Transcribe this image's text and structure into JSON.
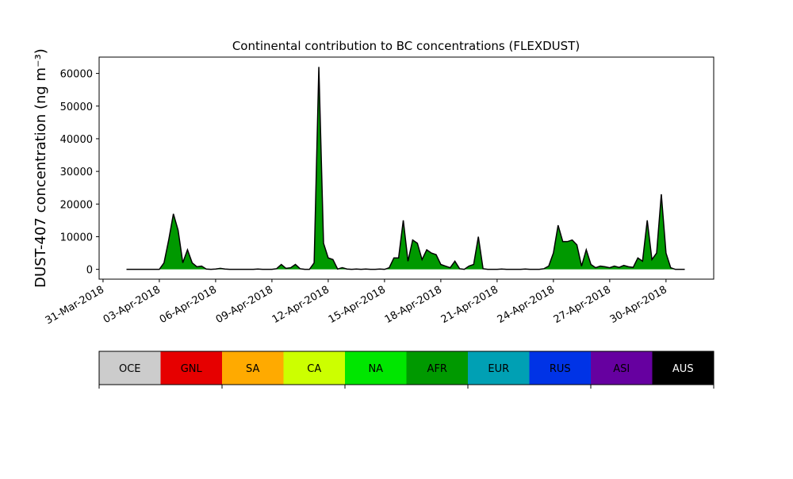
{
  "chart_data": {
    "type": "area",
    "title": "Continental contribution to BC concentrations (FLEXDUST)",
    "y_label": "DUST-407 concentration (ng m⁻³)",
    "xlim": [
      "2018-03-30T19:00",
      "2018-05-02T13:00"
    ],
    "xticks": [
      {
        "value": "2018-03-31T00:00",
        "label": "31-Mar-2018"
      },
      {
        "value": "2018-04-03T00:00",
        "label": "03-Apr-2018"
      },
      {
        "value": "2018-04-06T00:00",
        "label": "06-Apr-2018"
      },
      {
        "value": "2018-04-09T00:00",
        "label": "09-Apr-2018"
      },
      {
        "value": "2018-04-12T00:00",
        "label": "12-Apr-2018"
      },
      {
        "value": "2018-04-15T00:00",
        "label": "15-Apr-2018"
      },
      {
        "value": "2018-04-18T00:00",
        "label": "18-Apr-2018"
      },
      {
        "value": "2018-04-21T00:00",
        "label": "21-Apr-2018"
      },
      {
        "value": "2018-04-24T00:00",
        "label": "24-Apr-2018"
      },
      {
        "value": "2018-04-27T00:00",
        "label": "27-Apr-2018"
      },
      {
        "value": "2018-04-30T00:00",
        "label": "30-Apr-2018"
      }
    ],
    "ylim": [
      -3000,
      65000
    ],
    "yticks": [
      0,
      10000,
      20000,
      30000,
      40000,
      50000,
      60000
    ],
    "x": [
      "2018-04-01T06:00",
      "2018-04-01T12:00",
      "2018-04-01T18:00",
      "2018-04-02T00:00",
      "2018-04-02T06:00",
      "2018-04-02T12:00",
      "2018-04-02T18:00",
      "2018-04-03T00:00",
      "2018-04-03T06:00",
      "2018-04-03T12:00",
      "2018-04-03T18:00",
      "2018-04-04T00:00",
      "2018-04-04T06:00",
      "2018-04-04T12:00",
      "2018-04-04T18:00",
      "2018-04-05T00:00",
      "2018-04-05T06:00",
      "2018-04-05T12:00",
      "2018-04-05T18:00",
      "2018-04-06T00:00",
      "2018-04-06T06:00",
      "2018-04-06T12:00",
      "2018-04-06T18:00",
      "2018-04-07T00:00",
      "2018-04-07T06:00",
      "2018-04-07T12:00",
      "2018-04-07T18:00",
      "2018-04-08T00:00",
      "2018-04-08T06:00",
      "2018-04-08T12:00",
      "2018-04-08T18:00",
      "2018-04-09T00:00",
      "2018-04-09T06:00",
      "2018-04-09T12:00",
      "2018-04-09T18:00",
      "2018-04-10T00:00",
      "2018-04-10T06:00",
      "2018-04-10T12:00",
      "2018-04-10T18:00",
      "2018-04-11T00:00",
      "2018-04-11T06:00",
      "2018-04-11T12:00",
      "2018-04-11T18:00",
      "2018-04-12T00:00",
      "2018-04-12T06:00",
      "2018-04-12T12:00",
      "2018-04-12T18:00",
      "2018-04-13T00:00",
      "2018-04-13T06:00",
      "2018-04-13T12:00",
      "2018-04-13T18:00",
      "2018-04-14T00:00",
      "2018-04-14T06:00",
      "2018-04-14T12:00",
      "2018-04-14T18:00",
      "2018-04-15T00:00",
      "2018-04-15T06:00",
      "2018-04-15T12:00",
      "2018-04-15T18:00",
      "2018-04-16T00:00",
      "2018-04-16T06:00",
      "2018-04-16T12:00",
      "2018-04-16T18:00",
      "2018-04-17T00:00",
      "2018-04-17T06:00",
      "2018-04-17T12:00",
      "2018-04-17T18:00",
      "2018-04-18T00:00",
      "2018-04-18T06:00",
      "2018-04-18T12:00",
      "2018-04-18T18:00",
      "2018-04-19T00:00",
      "2018-04-19T06:00",
      "2018-04-19T12:00",
      "2018-04-19T18:00",
      "2018-04-20T00:00",
      "2018-04-20T06:00",
      "2018-04-20T12:00",
      "2018-04-20T18:00",
      "2018-04-21T00:00",
      "2018-04-21T06:00",
      "2018-04-21T12:00",
      "2018-04-21T18:00",
      "2018-04-22T00:00",
      "2018-04-22T06:00",
      "2018-04-22T12:00",
      "2018-04-22T18:00",
      "2018-04-23T00:00",
      "2018-04-23T06:00",
      "2018-04-23T12:00",
      "2018-04-23T18:00",
      "2018-04-24T00:00",
      "2018-04-24T06:00",
      "2018-04-24T12:00",
      "2018-04-24T18:00",
      "2018-04-25T00:00",
      "2018-04-25T06:00",
      "2018-04-25T12:00",
      "2018-04-25T18:00",
      "2018-04-26T00:00",
      "2018-04-26T06:00",
      "2018-04-26T12:00",
      "2018-04-26T18:00",
      "2018-04-27T00:00",
      "2018-04-27T06:00",
      "2018-04-27T12:00",
      "2018-04-27T18:00",
      "2018-04-28T00:00",
      "2018-04-28T06:00",
      "2018-04-28T12:00",
      "2018-04-28T18:00",
      "2018-04-29T00:00",
      "2018-04-29T06:00",
      "2018-04-29T12:00",
      "2018-04-29T18:00",
      "2018-04-30T00:00",
      "2018-04-30T06:00",
      "2018-04-30T12:00",
      "2018-04-30T18:00",
      "2018-05-01T00:00"
    ],
    "series": [
      {
        "name": "AFR",
        "color": "#009900",
        "values": [
          0,
          0,
          0,
          0,
          0,
          0,
          0,
          0,
          2000,
          9000,
          17000,
          12000,
          2000,
          6000,
          2000,
          800,
          1000,
          100,
          0,
          100,
          300,
          100,
          0,
          0,
          0,
          0,
          0,
          0,
          100,
          0,
          0,
          0,
          200,
          1500,
          300,
          500,
          1500,
          200,
          0,
          0,
          2000,
          62000,
          8000,
          3500,
          3000,
          100,
          500,
          100,
          0,
          100,
          0,
          100,
          0,
          0,
          100,
          0,
          500,
          3500,
          3500,
          15000,
          2500,
          9000,
          8000,
          3000,
          6000,
          5000,
          4500,
          1500,
          1000,
          500,
          2500,
          200,
          0,
          1000,
          1500,
          10000,
          200,
          0,
          0,
          0,
          100,
          0,
          0,
          0,
          0,
          100,
          0,
          0,
          0,
          200,
          1000,
          5000,
          13500,
          8500,
          8500,
          9000,
          7500,
          1000,
          6000,
          1500,
          500,
          1000,
          800,
          500,
          1000,
          600,
          1200,
          800,
          600,
          3500,
          2500,
          15000,
          3000,
          5000,
          23000,
          5000,
          500,
          0,
          0,
          0
        ]
      }
    ],
    "colorbar": [
      {
        "name": "OCE",
        "color": "#cccccc"
      },
      {
        "name": "GNL",
        "color": "#e60000"
      },
      {
        "name": "SA",
        "color": "#ffaa00"
      },
      {
        "name": "CA",
        "color": "#ccff00"
      },
      {
        "name": "NA",
        "color": "#00e600"
      },
      {
        "name": "AFR",
        "color": "#009900"
      },
      {
        "name": "EUR",
        "color": "#00a0b4"
      },
      {
        "name": "RUS",
        "color": "#0033e6"
      },
      {
        "name": "ASI",
        "color": "#6600a0"
      },
      {
        "name": "AUS",
        "color": "#000000"
      }
    ]
  }
}
